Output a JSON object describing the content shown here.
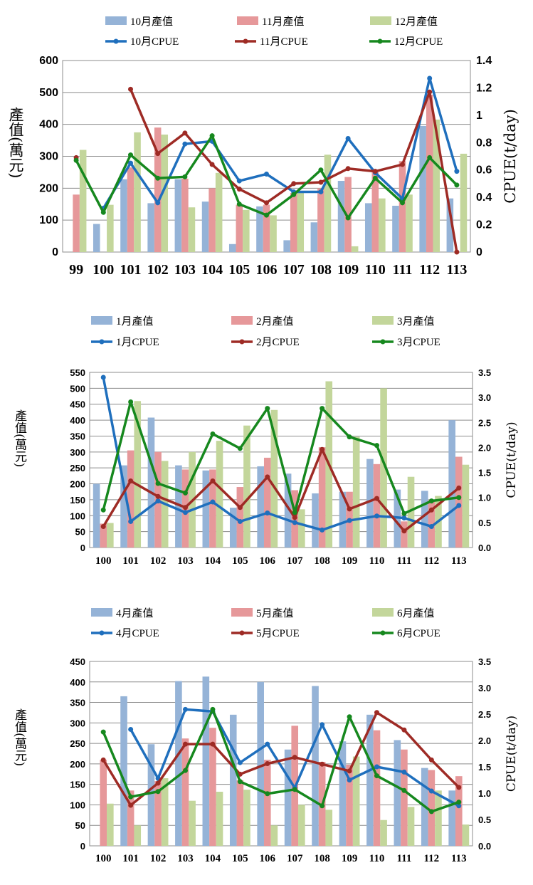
{
  "chart_data": [
    {
      "type": "bar+line",
      "categories": [
        "99",
        "100",
        "101",
        "102",
        "103",
        "104",
        "105",
        "106",
        "107",
        "108",
        "109",
        "110",
        "111",
        "112",
        "113"
      ],
      "ylabel": "產值(萬元)",
      "y2label": "CPUE(t/day)",
      "ylim": [
        0,
        600
      ],
      "y2lim": [
        0,
        1.4
      ],
      "yticks": [
        0,
        100,
        200,
        300,
        400,
        500,
        600
      ],
      "y2ticks": [
        "0",
        "0.2",
        "0.4",
        "0.6",
        "0.8",
        "1",
        "1.2",
        "1.4"
      ],
      "bars": [
        {
          "name": "10月產值",
          "color": "#95B3D7",
          "values": [
            null,
            88,
            228,
            153,
            228,
            158,
            25,
            143,
            37,
            93,
            223,
            153,
            145,
            395,
            168
          ]
        },
        {
          "name": "11月產值",
          "color": "#E6989A",
          "values": [
            180,
            null,
            265,
            390,
            230,
            200,
            148,
            148,
            185,
            200,
            235,
            250,
            285,
            493,
            null
          ]
        },
        {
          "name": "12月產值",
          "color": "#C3D69B",
          "values": [
            320,
            148,
            375,
            368,
            140,
            248,
            132,
            115,
            188,
            305,
            18,
            168,
            180,
            415,
            308
          ]
        }
      ],
      "lines": [
        {
          "name": "10月CPUE",
          "color": "#1F6FBD",
          "values": [
            null,
            0.32,
            0.65,
            0.36,
            0.79,
            0.81,
            0.52,
            0.57,
            0.44,
            0.44,
            0.83,
            0.58,
            0.39,
            1.27,
            0.59
          ]
        },
        {
          "name": "11月CPUE",
          "color": "#9E2B25",
          "values": [
            0.69,
            null,
            1.19,
            0.72,
            0.87,
            0.64,
            0.46,
            0.36,
            0.5,
            0.51,
            0.61,
            0.59,
            0.64,
            1.17,
            0.0
          ]
        },
        {
          "name": "12月CPUE",
          "color": "#16881E",
          "values": [
            0.67,
            0.29,
            0.71,
            0.54,
            0.55,
            0.85,
            0.35,
            0.27,
            0.42,
            0.6,
            0.25,
            0.54,
            0.36,
            0.69,
            0.49
          ]
        }
      ]
    },
    {
      "type": "bar+line",
      "categories": [
        "100",
        "101",
        "102",
        "103",
        "104",
        "105",
        "106",
        "107",
        "108",
        "109",
        "110",
        "111",
        "112",
        "113"
      ],
      "ylabel": "產值(萬元)",
      "y2label": "CPUE(t/day)",
      "ylim": [
        0,
        550
      ],
      "y2lim": [
        0,
        3.5
      ],
      "yticks": [
        0,
        50,
        100,
        150,
        200,
        250,
        300,
        350,
        400,
        450,
        500,
        550
      ],
      "y2ticks": [
        "0.0",
        "0.5",
        "1.0",
        "1.5",
        "2.0",
        "2.5",
        "3.0",
        "3.5"
      ],
      "bars": [
        {
          "name": "1月產值",
          "color": "#95B3D7",
          "values": [
            200,
            258,
            408,
            258,
            242,
            125,
            255,
            232,
            170,
            175,
            278,
            182,
            178,
            400
          ]
        },
        {
          "name": "2月產值",
          "color": "#E6989A",
          "values": [
            75,
            305,
            300,
            245,
            245,
            190,
            282,
            180,
            315,
            175,
            262,
            82,
            150,
            285
          ]
        },
        {
          "name": "3月產值",
          "color": "#C3D69B",
          "values": [
            77,
            460,
            272,
            300,
            335,
            383,
            432,
            120,
            522,
            348,
            500,
            222,
            162,
            260
          ]
        }
      ],
      "lines": [
        {
          "name": "1月CPUE",
          "color": "#1F6FBD",
          "values": [
            3.4,
            0.52,
            0.93,
            0.7,
            0.91,
            0.52,
            0.69,
            0.5,
            0.35,
            0.54,
            0.63,
            0.59,
            0.42,
            0.84
          ]
        },
        {
          "name": "2月CPUE",
          "color": "#9E2B25",
          "values": [
            0.42,
            1.33,
            1.02,
            0.8,
            1.33,
            0.8,
            1.41,
            0.6,
            1.96,
            0.77,
            0.98,
            0.33,
            0.75,
            1.19
          ]
        },
        {
          "name": "3月CPUE",
          "color": "#16881E",
          "values": [
            0.75,
            2.91,
            1.28,
            1.09,
            2.27,
            1.98,
            2.78,
            0.7,
            2.78,
            2.21,
            2.04,
            0.68,
            0.93,
            1.0
          ]
        }
      ]
    },
    {
      "type": "bar+line",
      "categories": [
        "100",
        "101",
        "102",
        "103",
        "104",
        "105",
        "106",
        "107",
        "108",
        "109",
        "110",
        "111",
        "112",
        "113"
      ],
      "ylabel": "產值(萬元)",
      "y2label": "CPUE(t/day)",
      "ylim": [
        0,
        450
      ],
      "y2lim": [
        0,
        3.5
      ],
      "yticks": [
        0,
        50,
        100,
        150,
        200,
        250,
        300,
        350,
        400,
        450
      ],
      "y2ticks": [
        "0.0",
        "0.5",
        "1.0",
        "1.5",
        "2.0",
        "2.5",
        "3.0",
        "3.5"
      ],
      "bars": [
        {
          "name": "4月產值",
          "color": "#95B3D7",
          "values": [
            null,
            365,
            248,
            402,
            413,
            320,
            400,
            235,
            390,
            255,
            320,
            258,
            190,
            135
          ]
        },
        {
          "name": "5月產值",
          "color": "#E6989A",
          "values": [
            210,
            135,
            158,
            262,
            288,
            160,
            210,
            293,
            205,
            198,
            282,
            235,
            185,
            170
          ]
        },
        {
          "name": "6月產值",
          "color": "#C3D69B",
          "values": [
            103,
            50,
            165,
            110,
            132,
            137,
            50,
            100,
            88,
            218,
            63,
            95,
            135,
            52
          ]
        }
      ],
      "lines": [
        {
          "name": "4月CPUE",
          "color": "#1F6FBD",
          "values": [
            null,
            2.21,
            1.28,
            2.59,
            2.55,
            1.58,
            1.93,
            1.1,
            2.3,
            1.25,
            1.5,
            1.4,
            1.04,
            0.76
          ]
        },
        {
          "name": "5月CPUE",
          "color": "#9E2B25",
          "values": [
            1.63,
            0.77,
            1.19,
            1.93,
            1.93,
            1.36,
            1.56,
            1.68,
            1.55,
            1.42,
            2.53,
            2.2,
            1.63,
            1.11
          ]
        },
        {
          "name": "6月CPUE",
          "color": "#16881E",
          "values": [
            2.16,
            0.93,
            1.03,
            1.43,
            2.59,
            1.22,
            0.99,
            1.07,
            0.76,
            2.45,
            1.33,
            1.05,
            0.65,
            0.83
          ]
        }
      ]
    }
  ]
}
